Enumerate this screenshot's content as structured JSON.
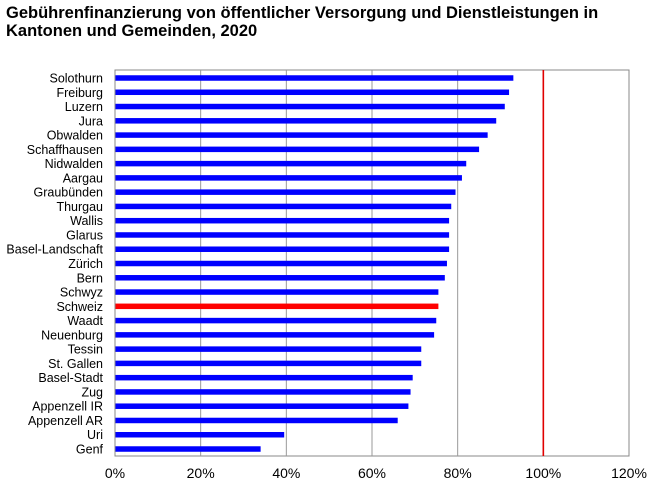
{
  "chart_data": {
    "type": "bar",
    "orientation": "horizontal",
    "title": "Gebührenfinanzierung von öffentlicher Versorgung und Dienstleistungen in Kantonen und Gemeinden, 2020",
    "xlabel": "",
    "ylabel": "",
    "categories": [
      "Solothurn",
      "Freiburg",
      "Luzern",
      "Jura",
      "Obwalden",
      "Schaffhausen",
      "Nidwalden",
      "Aargau",
      "Graubünden",
      "Thurgau",
      "Wallis",
      "Glarus",
      "Basel-Landschaft",
      "Zürich",
      "Bern",
      "Schwyz",
      "Schweiz",
      "Waadt",
      "Neuenburg",
      "Tessin",
      "St. Gallen",
      "Basel-Stadt",
      "Zug",
      "Appenzell IR",
      "Appenzell AR",
      "Uri",
      "Genf"
    ],
    "values": [
      93,
      92,
      91,
      89,
      87,
      85,
      82,
      81,
      79.5,
      78.5,
      78,
      78,
      78,
      77.5,
      77,
      75.5,
      75.5,
      75,
      74.5,
      71.5,
      71.5,
      69.5,
      69,
      68.5,
      66,
      39.5,
      34
    ],
    "highlight": "Schweiz",
    "xlim": [
      0,
      120
    ],
    "xticks": [
      0,
      20,
      40,
      60,
      80,
      100,
      120
    ],
    "xtick_labels": [
      "0%",
      "20%",
      "40%",
      "60%",
      "80%",
      "100%",
      "120%"
    ],
    "reference_line": 100,
    "grid": true,
    "colors": {
      "bar": "#0000ff",
      "highlight_bar": "#ff0000",
      "reference_line": "#e00000",
      "grid": "#999999",
      "axis": "#555555"
    }
  }
}
